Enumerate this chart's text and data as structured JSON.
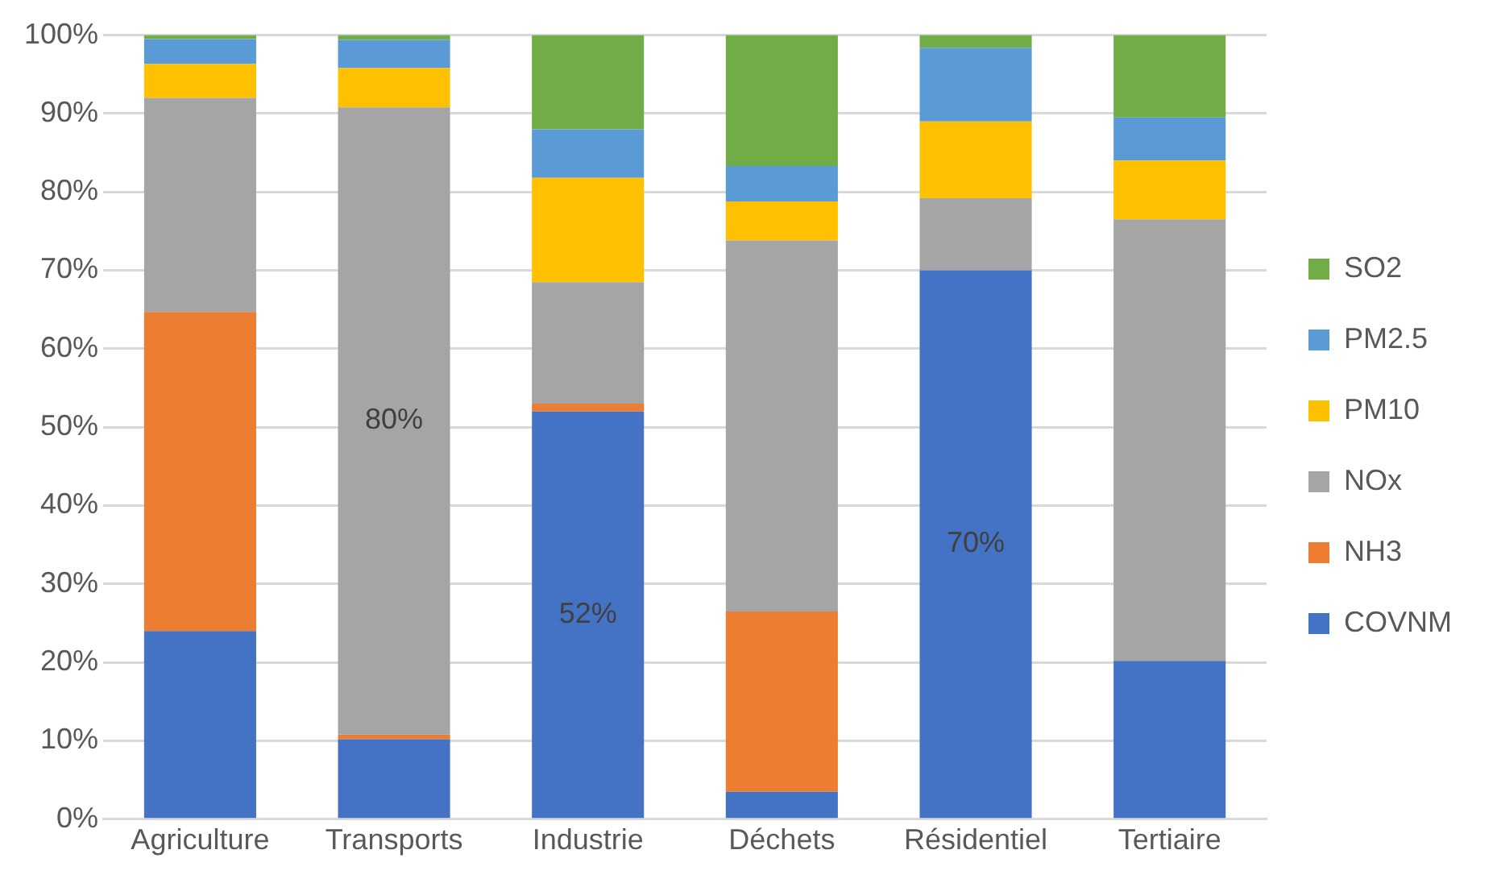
{
  "chart_data": {
    "type": "bar",
    "stacked": true,
    "categories": [
      "Agriculture",
      "Transports",
      "Industrie",
      "Déchets",
      "Résidentiel",
      "Tertiaire"
    ],
    "series": [
      {
        "name": "COVNM",
        "color": "#4472c4",
        "values": [
          24,
          10.2,
          52,
          3.5,
          70,
          20.2
        ],
        "value_labels": [
          null,
          null,
          "52%",
          null,
          "70%",
          null
        ]
      },
      {
        "name": "NH3",
        "color": "#ed7d31",
        "values": [
          40.7,
          0.6,
          1,
          23,
          0,
          0
        ]
      },
      {
        "name": "NOx",
        "color": "#a5a5a5",
        "values": [
          27.3,
          80,
          15.5,
          47.3,
          9.2,
          56.3
        ],
        "value_labels": [
          null,
          "80%",
          null,
          null,
          null,
          null
        ]
      },
      {
        "name": "PM10",
        "color": "#ffc000",
        "values": [
          4.3,
          5,
          13.3,
          5,
          9.8,
          7.5
        ]
      },
      {
        "name": "PM2.5",
        "color": "#5b9bd5",
        "values": [
          3.2,
          3.6,
          6.2,
          4.5,
          9.4,
          5.5
        ]
      },
      {
        "name": "SO2",
        "color": "#70ad47",
        "values": [
          0.5,
          0.6,
          12,
          16.7,
          1.6,
          10.5
        ]
      }
    ],
    "ylim": [
      0,
      100
    ],
    "yticks": [
      {
        "value": 0,
        "label": "0%"
      },
      {
        "value": 10,
        "label": "10%"
      },
      {
        "value": 20,
        "label": "20%"
      },
      {
        "value": 30,
        "label": "30%"
      },
      {
        "value": 40,
        "label": "40%"
      },
      {
        "value": 50,
        "label": "50%"
      },
      {
        "value": 60,
        "label": "60%"
      },
      {
        "value": 70,
        "label": "70%"
      },
      {
        "value": 80,
        "label": "80%"
      },
      {
        "value": 90,
        "label": "90%"
      },
      {
        "value": 100,
        "label": "100%"
      }
    ],
    "grid": "y",
    "legend": "right"
  }
}
